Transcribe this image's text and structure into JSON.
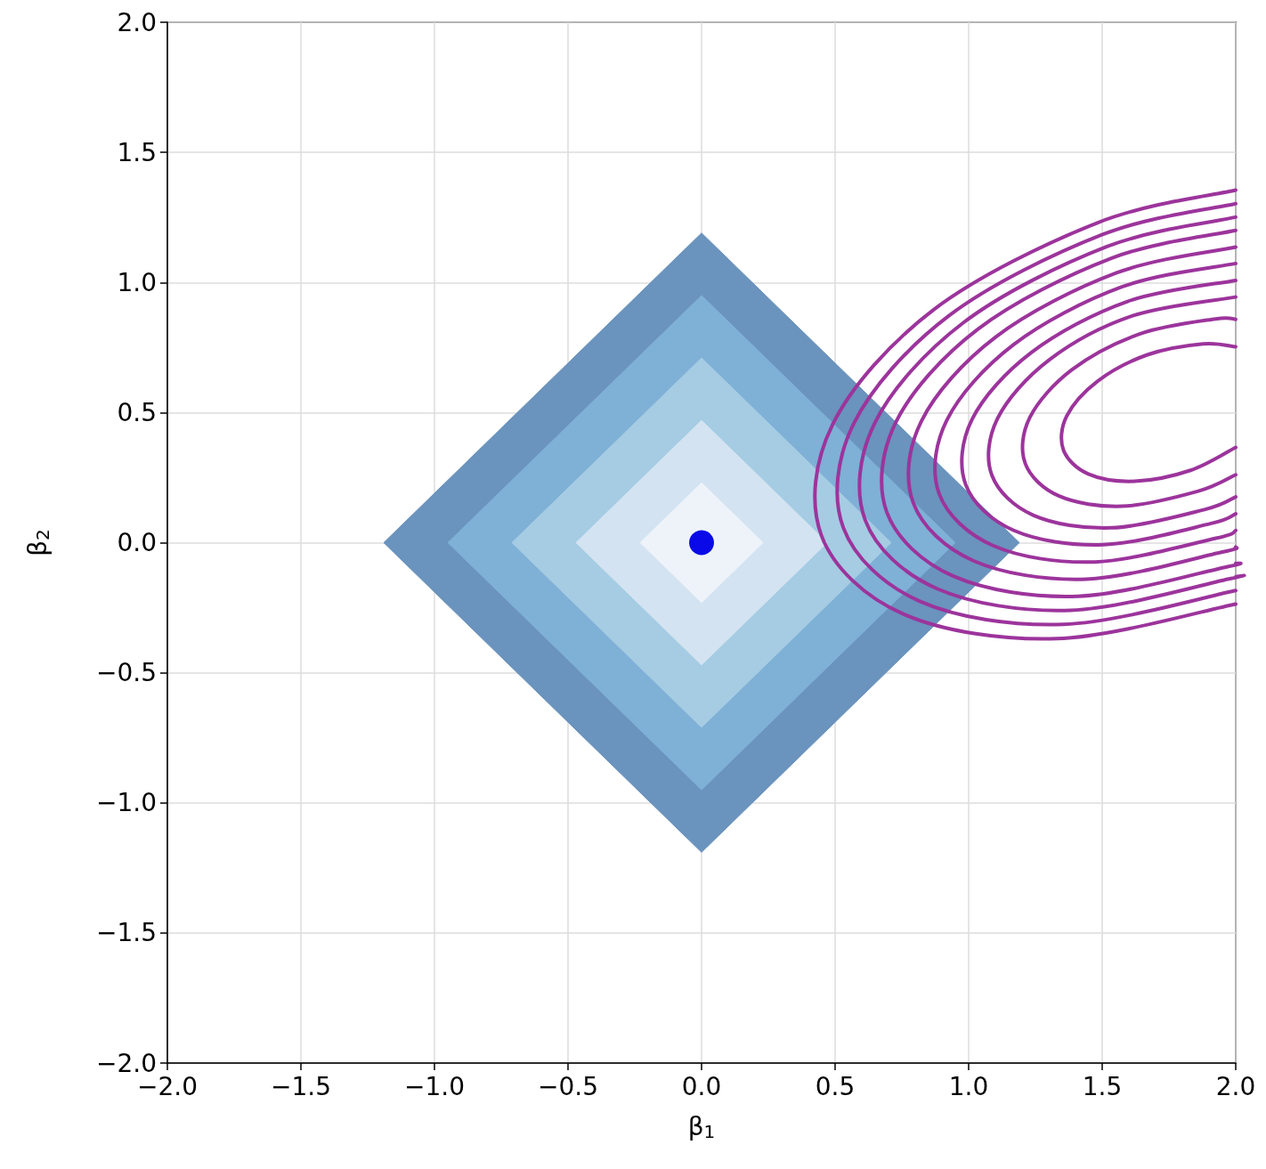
{
  "chart_data": {
    "type": "line",
    "xlabel": "β$_{1}$",
    "ylabel": "β$_{2}$",
    "xlim": [
      -2,
      2
    ],
    "ylim": [
      -2,
      2
    ],
    "xticks": [
      {
        "value": -2,
        "label": "−2.0"
      },
      {
        "value": -1.5,
        "label": "−1.5"
      },
      {
        "value": -1,
        "label": "−1.0"
      },
      {
        "value": -0.5,
        "label": "−0.5"
      },
      {
        "value": 0,
        "label": "0.0"
      },
      {
        "value": 0.5,
        "label": "0.5"
      },
      {
        "value": 1,
        "label": "1.0"
      },
      {
        "value": 1.5,
        "label": "1.5"
      },
      {
        "value": 2,
        "label": "2.0"
      }
    ],
    "yticks": [
      {
        "value": -2,
        "label": "−2.0"
      },
      {
        "value": -1.5,
        "label": "−1.5"
      },
      {
        "value": -1,
        "label": "−1.0"
      },
      {
        "value": -0.5,
        "label": "−0.5"
      },
      {
        "value": 0,
        "label": "0.0"
      },
      {
        "value": 0.5,
        "label": "0.5"
      },
      {
        "value": 1,
        "label": "1.0"
      },
      {
        "value": 1.5,
        "label": "1.5"
      },
      {
        "value": 2,
        "label": "2.0"
      }
    ],
    "grid": true,
    "series": [
      {
        "type": "area",
        "color": "#6a93bd",
        "x": [
          -1.19,
          0,
          1.19,
          0,
          -1.19
        ],
        "values": [
          0,
          1.19,
          0,
          -1.19,
          0
        ]
      },
      {
        "type": "area",
        "color": "#7fb0d6",
        "x": [
          -0.95,
          0,
          0.95,
          0,
          -0.95
        ],
        "values": [
          0,
          0.95,
          0,
          -0.95,
          0
        ]
      },
      {
        "type": "area",
        "color": "#a5cce3",
        "x": [
          -0.71,
          0,
          0.71,
          0,
          -0.71
        ],
        "values": [
          0,
          0.71,
          0,
          -0.71,
          0
        ]
      },
      {
        "type": "area",
        "color": "#d3e3f1",
        "x": [
          -0.47,
          0,
          0.47,
          0,
          -0.47
        ],
        "values": [
          0,
          0.47,
          0,
          -0.47,
          0
        ]
      },
      {
        "type": "area",
        "color": "#eef3fa",
        "x": [
          -0.23,
          0,
          0.23,
          0,
          -0.23
        ],
        "values": [
          0,
          0.23,
          0,
          -0.23,
          0
        ]
      },
      {
        "color": "#9c349c",
        "x": [
          2,
          1.484,
          0.87,
          0.491,
          0.449,
          0.757,
          1.33,
          2
        ],
        "values": [
          1.355,
          1.23,
          0.896,
          0.455,
          0.027,
          -0.275,
          -0.369,
          -0.236
        ]
      },
      {
        "color": "#9c349c",
        "x": [
          2,
          1.501,
          0.925,
          0.57,
          0.531,
          0.819,
          1.356,
          2
        ],
        "values": [
          1.303,
          1.184,
          0.871,
          0.458,
          0.057,
          -0.226,
          -0.314,
          -0.184
        ]
      },
      {
        "color": "#9c349c",
        "x": [
          2,
          1.518,
          0.981,
          0.649,
          0.613,
          0.882,
          1.383,
          1.982,
          2
        ],
        "values": [
          1.251,
          1.138,
          0.846,
          0.461,
          0.086,
          -0.177,
          -0.26,
          -0.138,
          -0.131
        ]
      },
      {
        "color": "#9c349c",
        "x": [
          2,
          1.534,
          1.035,
          0.728,
          0.694,
          0.943,
          1.409,
          1.966,
          2
        ],
        "values": [
          1.2,
          1.093,
          0.821,
          0.464,
          0.116,
          -0.129,
          -0.206,
          -0.093,
          -0.08
        ]
      },
      {
        "color": "#9c349c",
        "x": [
          2,
          1.554,
          1.102,
          0.823,
          0.793,
          1.019,
          1.441,
          1.946,
          2
        ],
        "values": [
          1.136,
          1.037,
          0.791,
          0.467,
          0.152,
          -0.07,
          -0.14,
          -0.037,
          -0.017
        ]
      },
      {
        "color": "#9c349c",
        "x": [
          2,
          1.574,
          1.168,
          0.918,
          0.89,
          1.093,
          1.472,
          1.926,
          2
        ],
        "values": [
          1.073,
          0.983,
          0.761,
          0.47,
          0.187,
          -0.012,
          -0.074,
          0.017,
          0.047
        ]
      },
      {
        "color": "#9c349c",
        "x": [
          2,
          1.595,
          1.235,
          1.013,
          0.989,
          1.169,
          1.504,
          1.905,
          2
        ],
        "values": [
          1.008,
          0.927,
          0.731,
          0.474,
          0.223,
          0.047,
          -0.008,
          0.073,
          0.111
        ]
      },
      {
        "color": "#9c349c",
        "x": [
          2,
          1.614,
          1.301,
          1.108,
          1.087,
          1.243,
          1.536,
          1.886,
          2
        ],
        "values": [
          0.944,
          0.872,
          0.702,
          0.477,
          0.259,
          0.105,
          0.057,
          0.128,
          0.176
        ]
      },
      {
        "color": "#9c349c",
        "x": [
          2,
          1.924,
          1.64,
          1.386,
          1.229,
          1.212,
          1.339,
          1.576,
          1.86,
          2
        ],
        "values": [
          0.858,
          0.86,
          0.802,
          0.664,
          0.481,
          0.304,
          0.179,
          0.14,
          0.198,
          0.261
        ]
      },
      {
        "color": "#9c349c",
        "x": [
          2,
          1.878,
          1.669,
          1.482,
          1.367,
          1.355,
          1.448,
          1.622,
          1.831,
          2
        ],
        "values": [
          0.753,
          0.764,
          0.722,
          0.62,
          0.486,
          0.356,
          0.264,
          0.236,
          0.278,
          0.366
        ]
      },
      {
        "type": "scatter",
        "marker": "circle",
        "color": "#0a0ae8",
        "x": [
          0
        ],
        "values": [
          0
        ]
      }
    ]
  }
}
